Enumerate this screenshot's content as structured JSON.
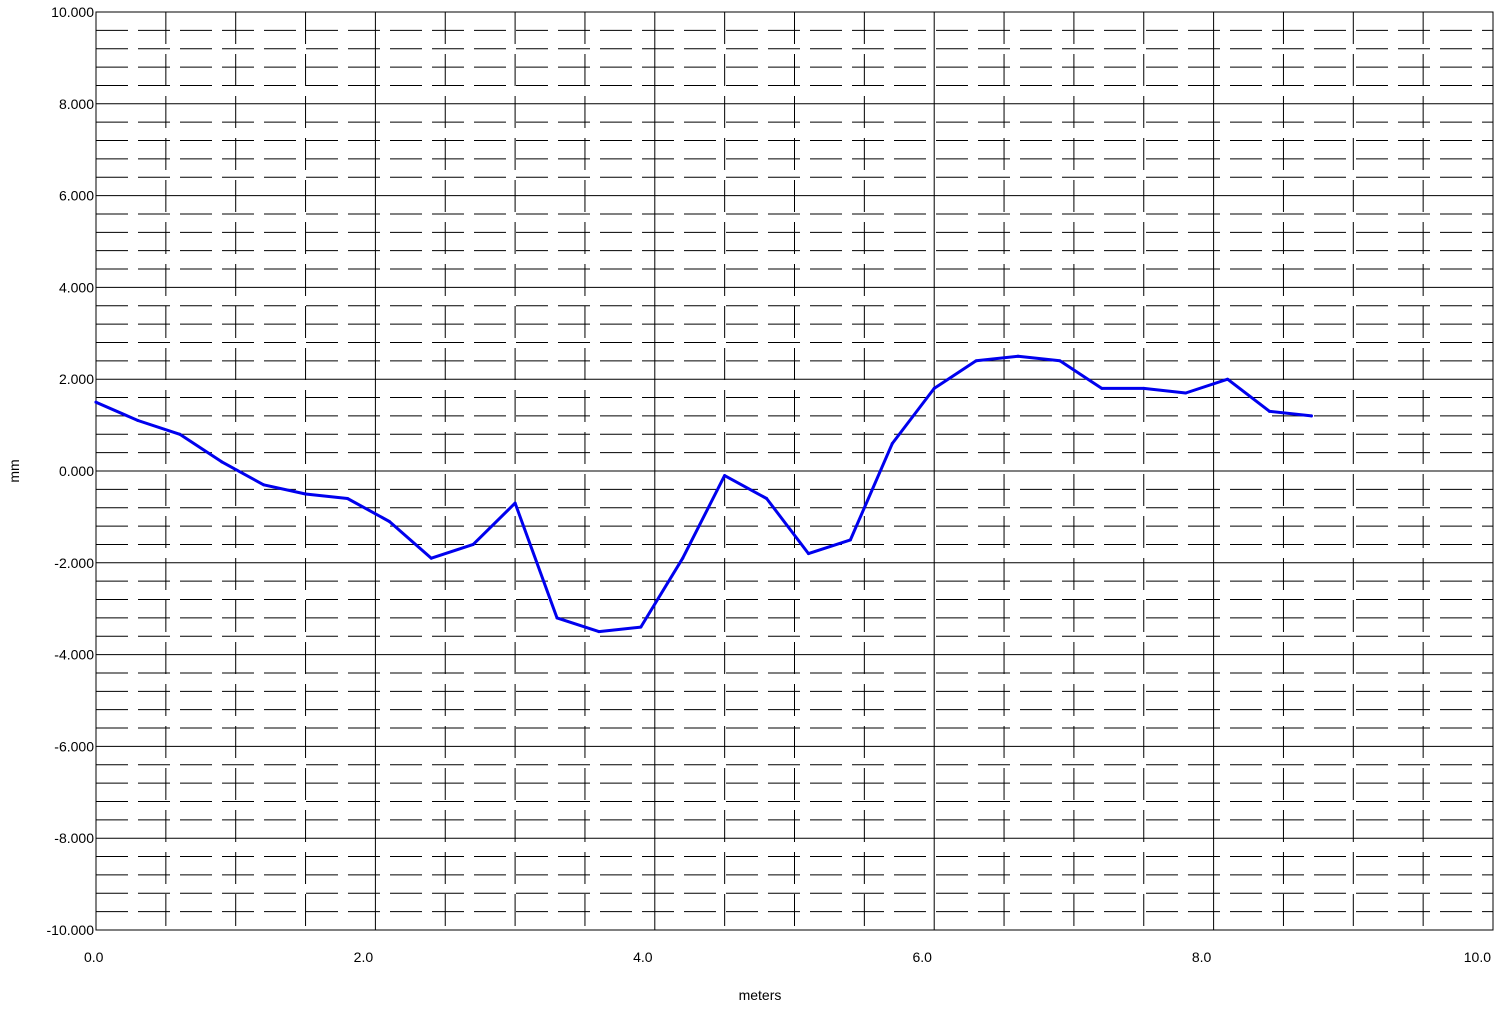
{
  "chart_data": {
    "type": "line",
    "xlabel": "meters",
    "ylabel": "mm",
    "xlim": [
      0,
      10
    ],
    "ylim": [
      -10,
      10
    ],
    "x_ticks": [
      {
        "value": 0,
        "label": "0.0"
      },
      {
        "value": 2,
        "label": "2.0"
      },
      {
        "value": 4,
        "label": "4.0"
      },
      {
        "value": 6,
        "label": "6.0"
      },
      {
        "value": 8,
        "label": "8.0"
      },
      {
        "value": 10,
        "label": "10.0"
      }
    ],
    "y_ticks": [
      {
        "value": 10,
        "label": "10.000"
      },
      {
        "value": 8,
        "label": "8.000"
      },
      {
        "value": 6,
        "label": "6.000"
      },
      {
        "value": 4,
        "label": "4.000"
      },
      {
        "value": 2,
        "label": "2.000"
      },
      {
        "value": 0,
        "label": "0.000"
      },
      {
        "value": -2,
        "label": "-2.000"
      },
      {
        "value": -4,
        "label": "-4.000"
      },
      {
        "value": -6,
        "label": "-6.000"
      },
      {
        "value": -8,
        "label": "-8.000"
      },
      {
        "value": -10,
        "label": "-10.000"
      }
    ],
    "grid": true,
    "series": [
      {
        "color": "#0000ee",
        "x": [
          0.0,
          0.3,
          0.6,
          0.9,
          1.2,
          1.5,
          1.8,
          2.1,
          2.4,
          2.7,
          3.0,
          3.3,
          3.6,
          3.9,
          4.2,
          4.5,
          4.8,
          5.1,
          5.4,
          5.7,
          6.0,
          6.3,
          6.6,
          6.9,
          7.2,
          7.5,
          7.8,
          8.1,
          8.4,
          8.7
        ],
        "y": [
          1.5,
          1.1,
          0.8,
          0.2,
          -0.3,
          -0.5,
          -0.6,
          -1.1,
          -1.9,
          -1.6,
          -0.7,
          -3.2,
          -3.5,
          -3.4,
          -1.9,
          -0.1,
          -0.6,
          -1.8,
          -1.5,
          0.6,
          1.8,
          2.4,
          2.5,
          2.4,
          1.8,
          1.8,
          1.7,
          2.0,
          1.3,
          1.2
        ]
      }
    ]
  }
}
